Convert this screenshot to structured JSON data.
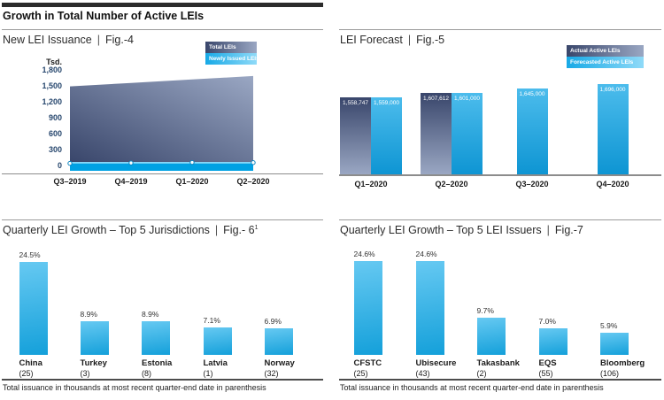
{
  "page": {
    "title": "Growth in Total Number of Active LEIs",
    "separator": "|"
  },
  "colors": {
    "accent_blue": "#00a1e3",
    "navy_gradient_dark": "#39466b",
    "navy_gradient_light": "#9aa7c3",
    "blue_gradient_light": "#66c9f2",
    "blue_gradient_dark": "#14a0da",
    "tick_label_navy": "#27476e"
  },
  "chart_data": [
    {
      "id": "fig4",
      "type": "area",
      "title": "New LEI Issuance",
      "fig": "Fig.-4",
      "ylabel": "Tsd.",
      "ylim": [
        0,
        1800
      ],
      "grid": false,
      "legend_position": "top-right",
      "x": [
        "Q3–2019",
        "Q4–2019",
        "Q1–2020",
        "Q2–2020"
      ],
      "series": [
        {
          "name": "Total LEIs",
          "values": [
            1490,
            1555,
            1620,
            1685
          ]
        },
        {
          "name": "Newly Issued LEIs",
          "values": [
            40,
            48,
            58,
            54
          ]
        }
      ],
      "yticks": [
        {
          "value": 0,
          "label": "0"
        },
        {
          "value": 300,
          "label": "300"
        },
        {
          "value": 600,
          "label": "600"
        },
        {
          "value": 900,
          "label": "900"
        },
        {
          "value": 1200,
          "label": "1,200"
        },
        {
          "value": 1500,
          "label": "1,500"
        },
        {
          "value": 1800,
          "label": "1,800"
        }
      ]
    },
    {
      "id": "fig5",
      "type": "bar",
      "title": "LEI Forecast",
      "fig": "Fig.-5",
      "legend_position": "top-right",
      "axis_truncated": true,
      "value_labels_position": "inside-top",
      "x": [
        "Q1–2020",
        "Q2–2020",
        "Q3–2020",
        "Q4–2020"
      ],
      "series": [
        {
          "name": "Actual Active LEIs",
          "values": [
            1558747,
            1607612,
            null,
            null
          ],
          "labels": [
            "1,558,747",
            "1,607,612",
            null,
            null
          ]
        },
        {
          "name": "Forecasted Active LEIs",
          "values": [
            1559000,
            1601000,
            1645000,
            1696000
          ],
          "labels": [
            "1,559,000",
            "1,601,000",
            "1,645,000",
            "1,696,000"
          ]
        }
      ]
    },
    {
      "id": "fig6",
      "type": "bar",
      "title": "Quarterly LEI Growth – Top 5 Jurisdictions",
      "fig": "Fig.- 6",
      "fig_superscript": "1",
      "categories": [
        "China",
        "Turkey",
        "Estonia",
        "Latvia",
        "Norway"
      ],
      "category_counts": [
        "(25)",
        "(3)",
        "(8)",
        "(1)",
        "(32)"
      ],
      "values": [
        24.5,
        8.9,
        8.9,
        7.1,
        6.9
      ],
      "value_labels": [
        "24.5%",
        "8.9%",
        "8.9%",
        "7.1%",
        "6.9%"
      ],
      "footnote": "Total issuance in thousands at most recent quarter-end date in parenthesis"
    },
    {
      "id": "fig7",
      "type": "bar",
      "title": "Quarterly LEI Growth – Top 5 LEI Issuers",
      "fig": "Fig.-7",
      "categories": [
        "CFSTC",
        "Ubisecure",
        "Takasbank",
        "EQS",
        "Bloomberg"
      ],
      "category_counts": [
        "(25)",
        "(43)",
        "(2)",
        "(55)",
        "(106)"
      ],
      "values": [
        24.6,
        24.6,
        9.7,
        7.0,
        5.9
      ],
      "value_labels": [
        "24.6%",
        "24.6%",
        "9.7%",
        "7.0%",
        "5.9%"
      ],
      "footnote": "Total issuance in thousands at most recent quarter-end date in parenthesis"
    }
  ]
}
